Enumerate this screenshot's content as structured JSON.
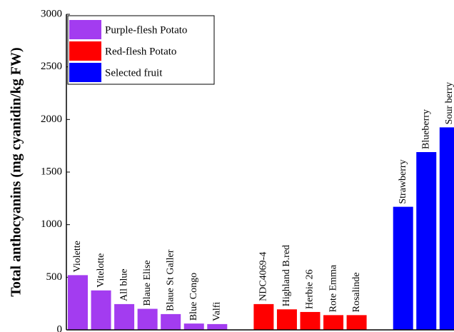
{
  "chart_data": {
    "type": "bar",
    "ylabel": "Total anthocyanins (mg cyanidin/kg FW)",
    "categories": [
      "Violette",
      "Vitelotte",
      "All blue",
      "Blaue Elise",
      "Blaue St Galler",
      "Blue Congo",
      "Valfi",
      null,
      "NDC4069-4",
      "Highland B.red",
      "Herbie 26",
      "Rote Emma",
      "Rosalinde",
      null,
      "Strawberry",
      "Blueberry",
      "Sour berry"
    ],
    "series": [
      {
        "name": "Purple-flesh Potato",
        "color": "#a33cf0",
        "values": [
          520,
          375,
          245,
          200,
          150,
          60,
          55,
          null,
          null,
          null,
          null,
          null,
          null,
          null,
          null,
          null,
          null
        ]
      },
      {
        "name": "Red-flesh Potato",
        "color": "#ff0000",
        "values": [
          null,
          null,
          null,
          null,
          null,
          null,
          null,
          null,
          245,
          195,
          170,
          140,
          140,
          null,
          null,
          null,
          null
        ]
      },
      {
        "name": "Selected fruit",
        "color": "#0000ff",
        "values": [
          null,
          null,
          null,
          null,
          null,
          null,
          null,
          null,
          null,
          null,
          null,
          null,
          null,
          null,
          1170,
          1690,
          1925
        ]
      }
    ],
    "ylim": [
      0,
      3000
    ],
    "yticks": [
      0,
      500,
      1000,
      1500,
      2000,
      2500,
      3000
    ],
    "legend": "upper left"
  }
}
